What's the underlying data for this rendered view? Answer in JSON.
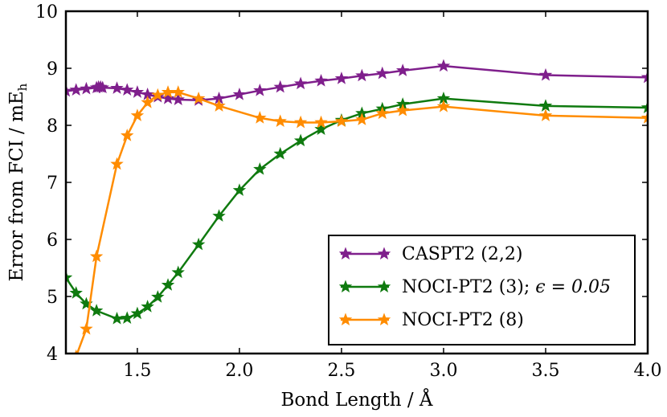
{
  "chart_data": {
    "type": "line",
    "xlabel": "Bond Length / Å",
    "ylabel_main": "Error from FCI / mE",
    "ylabel_sub": "h",
    "xlim": [
      1.15,
      4.0
    ],
    "ylim": [
      4,
      10
    ],
    "xticks": [
      1.5,
      2.0,
      2.5,
      3.0,
      3.5,
      4.0
    ],
    "xtick_labels": [
      "1.5",
      "2.0",
      "2.5",
      "3.0",
      "3.5",
      "4.0"
    ],
    "yticks": [
      4,
      5,
      6,
      7,
      8,
      9,
      10
    ],
    "ytick_labels": [
      "4",
      "5",
      "6",
      "7",
      "8",
      "9",
      "10"
    ],
    "legend_position": "lower-right",
    "series": [
      {
        "name": "CASPT2 (2,2)",
        "legend_label": "CASPT2 (2,2)",
        "color": "#7f1f8c",
        "marker": "star",
        "x": [
          1.15,
          1.2,
          1.25,
          1.3,
          1.31,
          1.32,
          1.33,
          1.4,
          1.45,
          1.5,
          1.55,
          1.6,
          1.65,
          1.7,
          1.8,
          1.9,
          2.0,
          2.1,
          2.2,
          2.3,
          2.4,
          2.5,
          2.6,
          2.7,
          2.8,
          3.0,
          3.5,
          4.0
        ],
        "y": [
          8.6,
          8.62,
          8.64,
          8.66,
          8.67,
          8.67,
          8.66,
          8.65,
          8.62,
          8.58,
          8.54,
          8.5,
          8.47,
          8.45,
          8.44,
          8.47,
          8.54,
          8.61,
          8.67,
          8.73,
          8.78,
          8.82,
          8.87,
          8.91,
          8.96,
          9.04,
          8.88,
          8.84
        ]
      },
      {
        "name": "NOCI-PT2 (3)",
        "legend_label": "NOCI-PT2 (3); ",
        "legend_math": "ϵ = 0.05",
        "color": "#0f7a0f",
        "marker": "star",
        "x": [
          1.15,
          1.2,
          1.25,
          1.3,
          1.4,
          1.45,
          1.5,
          1.55,
          1.6,
          1.65,
          1.7,
          1.8,
          1.9,
          2.0,
          2.1,
          2.2,
          2.3,
          2.4,
          2.5,
          2.6,
          2.7,
          2.8,
          3.0,
          3.5,
          4.0
        ],
        "y": [
          5.33,
          5.06,
          4.87,
          4.75,
          4.61,
          4.62,
          4.7,
          4.82,
          4.99,
          5.2,
          5.42,
          5.91,
          6.41,
          6.86,
          7.23,
          7.5,
          7.73,
          7.93,
          8.09,
          8.21,
          8.29,
          8.37,
          8.47,
          8.34,
          8.31
        ]
      },
      {
        "name": "NOCI-PT2 (8)",
        "legend_label": "NOCI-PT2 (8)",
        "color": "#ff8c00",
        "marker": "star",
        "x": [
          1.2,
          1.25,
          1.3,
          1.4,
          1.45,
          1.5,
          1.55,
          1.6,
          1.65,
          1.7,
          1.8,
          1.9,
          2.1,
          2.2,
          2.3,
          2.4,
          2.5,
          2.6,
          2.7,
          2.8,
          3.0,
          3.5,
          4.0
        ],
        "y": [
          3.95,
          4.43,
          5.7,
          7.32,
          7.82,
          8.17,
          8.4,
          8.53,
          8.58,
          8.58,
          8.47,
          8.34,
          8.13,
          8.07,
          8.05,
          8.05,
          8.07,
          8.1,
          8.21,
          8.26,
          8.33,
          8.17,
          8.13
        ]
      }
    ]
  }
}
